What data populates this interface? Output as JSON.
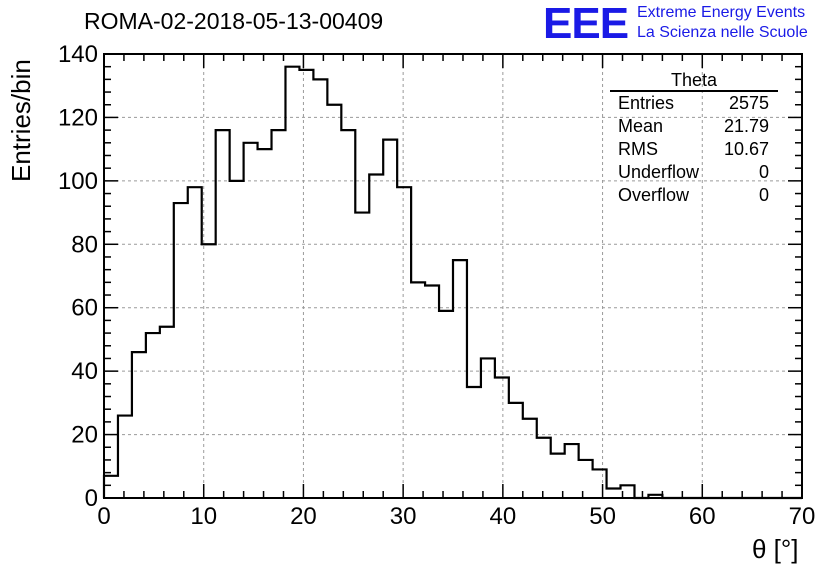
{
  "plot_title": "ROMA-02-2018-05-13-00409",
  "logo": {
    "mark": "EEE",
    "line1": "Extreme Energy Events",
    "line2": "La Scienza nelle Scuole",
    "color": "#1a1ae6"
  },
  "stats": {
    "title": "Theta",
    "rows": [
      {
        "label": "Entries",
        "value": "2575"
      },
      {
        "label": "Mean",
        "value": "21.79"
      },
      {
        "label": "RMS",
        "value": "10.67"
      },
      {
        "label": "Underflow",
        "value": "0"
      },
      {
        "label": "Overflow",
        "value": "0"
      }
    ]
  },
  "chart_data": {
    "type": "bar",
    "histogram": true,
    "xlabel": "θ [°]",
    "ylabel": "Entries/bin",
    "xlim": [
      0,
      70
    ],
    "ylim": [
      0,
      140
    ],
    "bin_width": 1.4,
    "x_ticks": [
      "0",
      "10",
      "20",
      "30",
      "40",
      "50",
      "60",
      "70"
    ],
    "y_ticks": [
      "0",
      "20",
      "40",
      "60",
      "80",
      "100",
      "120",
      "140"
    ],
    "grid": true,
    "values": [
      7,
      26,
      46,
      52,
      54,
      93,
      98,
      80,
      116,
      100,
      112,
      110,
      116,
      136,
      135,
      132,
      124,
      116,
      90,
      102,
      113,
      98,
      68,
      67,
      59,
      75,
      35,
      44,
      38,
      30,
      25,
      19,
      14,
      17,
      12,
      9,
      3,
      4,
      0,
      1,
      0,
      0,
      0,
      0,
      0,
      0,
      0,
      0,
      0,
      0
    ]
  }
}
